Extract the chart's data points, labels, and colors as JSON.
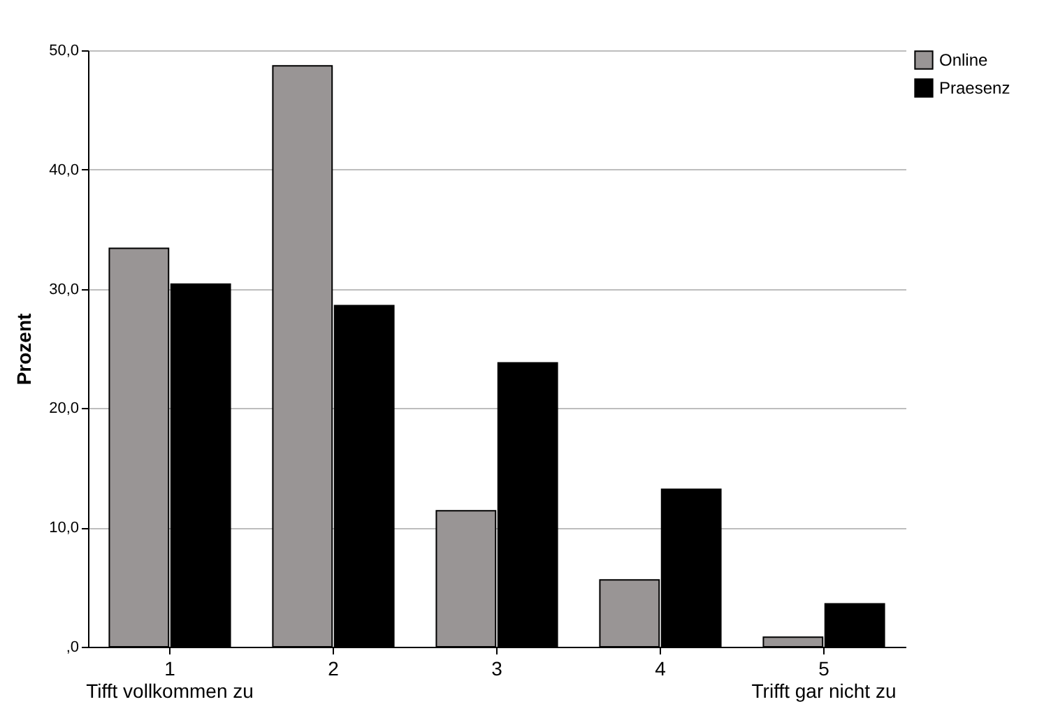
{
  "chart_data": {
    "type": "bar",
    "ylabel": "Prozent",
    "categories": [
      "1\nTifft vollkommen zu",
      "2",
      "3",
      "4",
      "5\nTrifft gar nicht zu"
    ],
    "series": [
      {
        "name": "Online",
        "color": "#999595",
        "values": [
          33.4,
          48.7,
          11.4,
          5.6,
          0.8
        ]
      },
      {
        "name": "Praesenz",
        "color": "#000000",
        "values": [
          30.4,
          28.6,
          23.8,
          13.2,
          3.6
        ]
      }
    ],
    "ylim": [
      0,
      50
    ],
    "yticks": [
      {
        "value": 0,
        "label": ",0"
      },
      {
        "value": 10,
        "label": "10,0"
      },
      {
        "value": 20,
        "label": "20,0"
      },
      {
        "value": 30,
        "label": "30,0"
      },
      {
        "value": 40,
        "label": "40,0"
      },
      {
        "value": 50,
        "label": "50,0"
      }
    ],
    "grid": "y",
    "legend": "top right"
  }
}
